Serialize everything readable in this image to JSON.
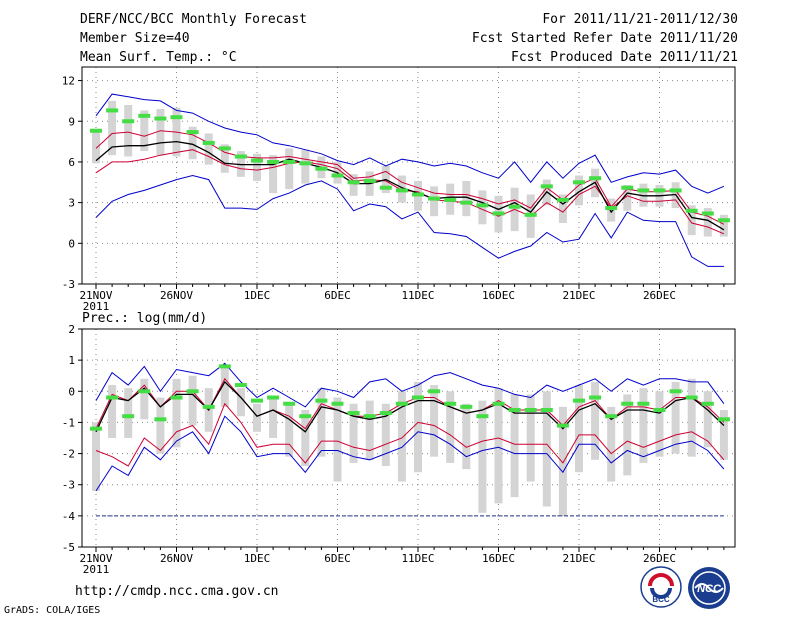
{
  "header": {
    "title": "DERF/NCC/BCC Monthly Forecast",
    "member_size": "Member Size=40",
    "variable1": "Mean Surf. Temp.: °C",
    "period": "For 2011/11/21-2011/12/30",
    "started": "Fcst Started Refer Date 2011/11/20",
    "produced": "Fcst Produced Date 2011/11/21"
  },
  "precip_label": "Prec.: log(mm/d)",
  "footer": {
    "url": "http://cmdp.ncc.cma.gov.cn",
    "grads": "GrADS: COLA/IGES",
    "logo1": "BCC",
    "logo2": "NCC"
  },
  "colors": {
    "envelope": "#0000cc",
    "spread": "#cc0033",
    "mean": "#000000",
    "obs": "#44dd44",
    "bar": "#d4d4d4",
    "grid": "#888888"
  },
  "chart_data": [
    {
      "type": "line",
      "title": "Mean Surf. Temp.: °C",
      "x_tick_labels": [
        "21NOV",
        "26NOV",
        "1DEC",
        "6DEC",
        "11DEC",
        "16DEC",
        "21DEC",
        "26DEC"
      ],
      "x_tick_days": [
        1,
        6,
        11,
        16,
        21,
        26,
        31,
        36
      ],
      "x_sublabel": "2011",
      "ylim": [
        -3,
        13
      ],
      "y_ticks": [
        -3,
        0,
        3,
        6,
        9,
        12
      ],
      "days": 40,
      "series": [
        {
          "name": "max",
          "values": [
            1.9,
            3.1,
            3.6,
            3.9,
            4.3,
            4.7,
            5.0,
            4.7,
            2.6,
            2.6,
            2.5,
            3.3,
            3.7,
            4.3,
            4.6,
            4.0,
            2.4,
            2.9,
            2.7,
            1.8,
            2.3,
            0.8,
            0.7,
            0.5,
            -0.3,
            -1.1,
            -0.6,
            -0.2,
            0.8,
            0.1,
            0.3,
            2.2,
            0.4,
            2.3,
            1.7,
            1.6,
            1.6,
            -1.0,
            -1.7,
            -1.7
          ]
        },
        {
          "name": "upper",
          "values": [
            5.2,
            6.0,
            6.0,
            6.2,
            6.5,
            6.7,
            6.9,
            6.4,
            5.8,
            5.5,
            5.4,
            5.6,
            5.9,
            6.0,
            5.8,
            5.5,
            4.6,
            4.7,
            4.6,
            3.9,
            3.8,
            3.2,
            3.1,
            3.0,
            2.5,
            2.0,
            2.5,
            2.0,
            3.0,
            2.3,
            3.6,
            4.2,
            2.6,
            3.5,
            3.1,
            3.1,
            3.2,
            1.5,
            1.2,
            0.7
          ]
        },
        {
          "name": "mean",
          "values": [
            6.1,
            7.1,
            7.2,
            7.2,
            7.4,
            7.5,
            7.3,
            6.7,
            5.9,
            5.8,
            5.8,
            5.8,
            6.2,
            5.9,
            5.6,
            5.2,
            4.4,
            4.4,
            4.7,
            4.1,
            3.7,
            3.3,
            3.4,
            3.4,
            3.0,
            2.5,
            3.0,
            2.3,
            3.8,
            2.9,
            3.8,
            4.5,
            2.3,
            3.7,
            3.5,
            3.5,
            3.6,
            1.9,
            1.7,
            1.0
          ]
        },
        {
          "name": "lower",
          "values": [
            7.0,
            8.1,
            8.2,
            7.9,
            8.3,
            8.2,
            8.0,
            7.4,
            6.7,
            6.4,
            6.3,
            6.3,
            6.4,
            6.2,
            6.0,
            5.8,
            4.8,
            4.9,
            5.3,
            4.5,
            4.1,
            3.7,
            3.6,
            3.6,
            3.3,
            2.9,
            3.2,
            2.6,
            4.1,
            3.2,
            4.3,
            4.8,
            2.7,
            4.0,
            3.8,
            3.8,
            3.9,
            2.3,
            2.0,
            1.4
          ]
        },
        {
          "name": "min",
          "values": [
            9.4,
            11.0,
            10.8,
            10.6,
            10.5,
            9.8,
            9.6,
            9.0,
            8.5,
            8.2,
            8.0,
            7.4,
            7.2,
            6.9,
            6.6,
            6.1,
            5.8,
            6.3,
            5.7,
            6.2,
            6.0,
            5.7,
            5.9,
            5.7,
            5.2,
            4.8,
            6.0,
            4.5,
            6.0,
            4.8,
            5.9,
            6.5,
            4.5,
            4.9,
            5.2,
            5.1,
            5.4,
            4.2,
            3.7,
            4.2
          ]
        },
        {
          "name": "obs",
          "values": [
            8.3,
            9.8,
            9.0,
            9.4,
            9.2,
            9.3,
            8.2,
            7.4,
            7.0,
            6.4,
            6.1,
            6.0,
            6.0,
            5.9,
            5.5,
            5.0,
            4.5,
            4.6,
            4.1,
            3.9,
            3.6,
            3.3,
            3.2,
            3.0,
            2.8,
            2.2,
            2.7,
            2.1,
            4.2,
            3.2,
            4.5,
            4.8,
            2.6,
            4.1,
            3.9,
            3.9,
            3.9,
            2.4,
            2.2,
            1.7
          ]
        }
      ],
      "bars": {
        "low": [
          5.9,
          6.5,
          6.4,
          6.8,
          6.5,
          6.4,
          6.2,
          5.8,
          5.2,
          4.9,
          4.6,
          3.7,
          4.0,
          4.4,
          4.8,
          4.4,
          3.5,
          3.5,
          3.7,
          3.0,
          2.4,
          2.0,
          2.1,
          2.0,
          1.4,
          0.8,
          0.9,
          0.4,
          2.8,
          1.5,
          2.8,
          3.4,
          1.6,
          2.4,
          2.7,
          2.7,
          2.6,
          0.6,
          0.5,
          0.5
        ],
        "high": [
          8.4,
          10.5,
          10.2,
          9.8,
          9.9,
          10.0,
          8.6,
          8.1,
          7.3,
          6.8,
          6.6,
          6.5,
          7.0,
          6.9,
          6.4,
          6.0,
          5.1,
          5.3,
          5.7,
          5.0,
          4.6,
          4.2,
          4.4,
          4.6,
          3.9,
          3.5,
          4.1,
          3.6,
          4.7,
          3.6,
          5.0,
          5.5,
          3.3,
          4.3,
          4.4,
          4.3,
          4.5,
          2.8,
          2.6,
          2.1
        ]
      }
    },
    {
      "type": "line",
      "title": "Prec.: log(mm/d)",
      "x_tick_labels": [
        "21NOV",
        "26NOV",
        "1DEC",
        "6DEC",
        "11DEC",
        "16DEC",
        "21DEC",
        "26DEC"
      ],
      "x_tick_days": [
        1,
        6,
        11,
        16,
        21,
        26,
        31,
        36
      ],
      "x_sublabel": "2011",
      "ylim": [
        -5,
        2
      ],
      "y_ticks": [
        -5,
        -4,
        -3,
        -2,
        -1,
        0,
        1,
        2
      ],
      "days": 40,
      "reference_line": -4,
      "series": [
        {
          "name": "max",
          "values": [
            -0.3,
            0.6,
            0.2,
            0.8,
            0.0,
            0.7,
            0.6,
            0.5,
            0.9,
            0.3,
            -0.2,
            0.1,
            -0.2,
            -0.5,
            0.1,
            0.0,
            -0.2,
            0.3,
            0.4,
            0.0,
            0.2,
            0.5,
            0.6,
            0.4,
            0.2,
            0.1,
            -0.1,
            -0.2,
            0.2,
            0.0,
            0.2,
            0.4,
            0.0,
            0.4,
            0.2,
            0.4,
            0.4,
            0.3,
            0.3,
            -0.4
          ]
        },
        {
          "name": "upper",
          "values": [
            -1.2,
            -0.1,
            -0.3,
            0.2,
            -0.5,
            0.0,
            0.0,
            -0.6,
            0.4,
            -0.2,
            -0.8,
            -0.6,
            -0.8,
            -1.2,
            -0.4,
            -0.6,
            -0.8,
            -0.8,
            -0.7,
            -0.4,
            -0.2,
            -0.2,
            -0.5,
            -0.7,
            -0.6,
            -0.3,
            -0.6,
            -0.6,
            -0.6,
            -1.1,
            -0.5,
            -0.3,
            -0.9,
            -0.5,
            -0.5,
            -0.6,
            -0.2,
            -0.2,
            -0.5,
            -1.0
          ]
        },
        {
          "name": "mean",
          "values": [
            -1.3,
            -0.2,
            -0.3,
            0.1,
            -0.5,
            -0.1,
            -0.1,
            -0.6,
            0.3,
            -0.2,
            -0.8,
            -0.6,
            -0.9,
            -1.3,
            -0.5,
            -0.6,
            -0.8,
            -0.9,
            -0.8,
            -0.5,
            -0.3,
            -0.3,
            -0.5,
            -0.7,
            -0.6,
            -0.4,
            -0.7,
            -0.7,
            -0.7,
            -1.2,
            -0.6,
            -0.4,
            -0.9,
            -0.6,
            -0.6,
            -0.7,
            -0.3,
            -0.2,
            -0.6,
            -1.1
          ]
        },
        {
          "name": "lower",
          "values": [
            -1.9,
            -2.1,
            -2.4,
            -1.5,
            -1.9,
            -1.3,
            -1.1,
            -1.7,
            -0.4,
            -1.0,
            -1.8,
            -1.7,
            -1.7,
            -2.3,
            -1.6,
            -1.6,
            -1.8,
            -1.9,
            -1.7,
            -1.5,
            -1.0,
            -1.1,
            -1.4,
            -1.8,
            -1.6,
            -1.5,
            -1.7,
            -1.7,
            -1.7,
            -2.3,
            -1.4,
            -1.4,
            -2.0,
            -1.6,
            -1.8,
            -1.6,
            -1.4,
            -1.3,
            -1.6,
            -2.2
          ]
        },
        {
          "name": "min",
          "values": [
            -3.2,
            -2.4,
            -2.7,
            -1.8,
            -2.2,
            -1.6,
            -1.3,
            -2.0,
            -0.8,
            -1.3,
            -2.1,
            -2.0,
            -2.0,
            -2.6,
            -1.9,
            -1.9,
            -2.1,
            -2.2,
            -2.0,
            -1.8,
            -1.3,
            -1.4,
            -1.7,
            -2.1,
            -1.9,
            -1.8,
            -2.0,
            -2.0,
            -2.0,
            -2.6,
            -1.7,
            -1.7,
            -2.3,
            -1.9,
            -2.1,
            -1.9,
            -1.7,
            -1.6,
            -1.9,
            -2.5
          ]
        },
        {
          "name": "obs",
          "values": [
            -1.2,
            -0.2,
            -0.8,
            0.0,
            -0.9,
            -0.2,
            0.0,
            -0.5,
            0.8,
            0.2,
            -0.3,
            -0.2,
            -0.4,
            -0.8,
            -0.3,
            -0.4,
            -0.7,
            -0.8,
            -0.7,
            -0.4,
            -0.2,
            0.0,
            -0.4,
            -0.5,
            -0.8,
            -0.4,
            -0.6,
            -0.6,
            -0.6,
            -1.1,
            -0.3,
            -0.2,
            -0.8,
            -0.4,
            -0.4,
            -0.6,
            0.0,
            -0.2,
            -0.4,
            -0.9
          ]
        }
      ],
      "bars": {
        "low": [
          -3.2,
          -1.5,
          -1.5,
          -0.9,
          -2.0,
          -1.8,
          -1.1,
          -1.3,
          -0.5,
          -0.8,
          -1.3,
          -1.5,
          -2.1,
          -2.4,
          -2.1,
          -2.9,
          -2.3,
          -2.2,
          -2.4,
          -2.9,
          -2.6,
          -2.1,
          -2.3,
          -2.5,
          -3.9,
          -3.6,
          -3.4,
          -2.9,
          -3.7,
          -4.0,
          -2.6,
          -2.2,
          -2.9,
          -2.7,
          -2.3,
          -2.1,
          -2.0,
          -2.1,
          -1.8,
          -2.2
        ],
        "high": [
          -1.0,
          0.2,
          0.1,
          0.4,
          -0.2,
          0.4,
          0.5,
          0.1,
          0.8,
          0.1,
          -0.4,
          -0.2,
          -0.4,
          -0.6,
          0.1,
          -0.2,
          -0.4,
          -0.3,
          -0.4,
          0.0,
          0.3,
          0.2,
          0.0,
          -0.4,
          -0.3,
          0.1,
          -0.1,
          -0.1,
          0.0,
          -0.5,
          0.2,
          0.3,
          -0.5,
          -0.1,
          0.1,
          0.0,
          0.3,
          0.4,
          0.0,
          -0.6
        ]
      }
    }
  ]
}
